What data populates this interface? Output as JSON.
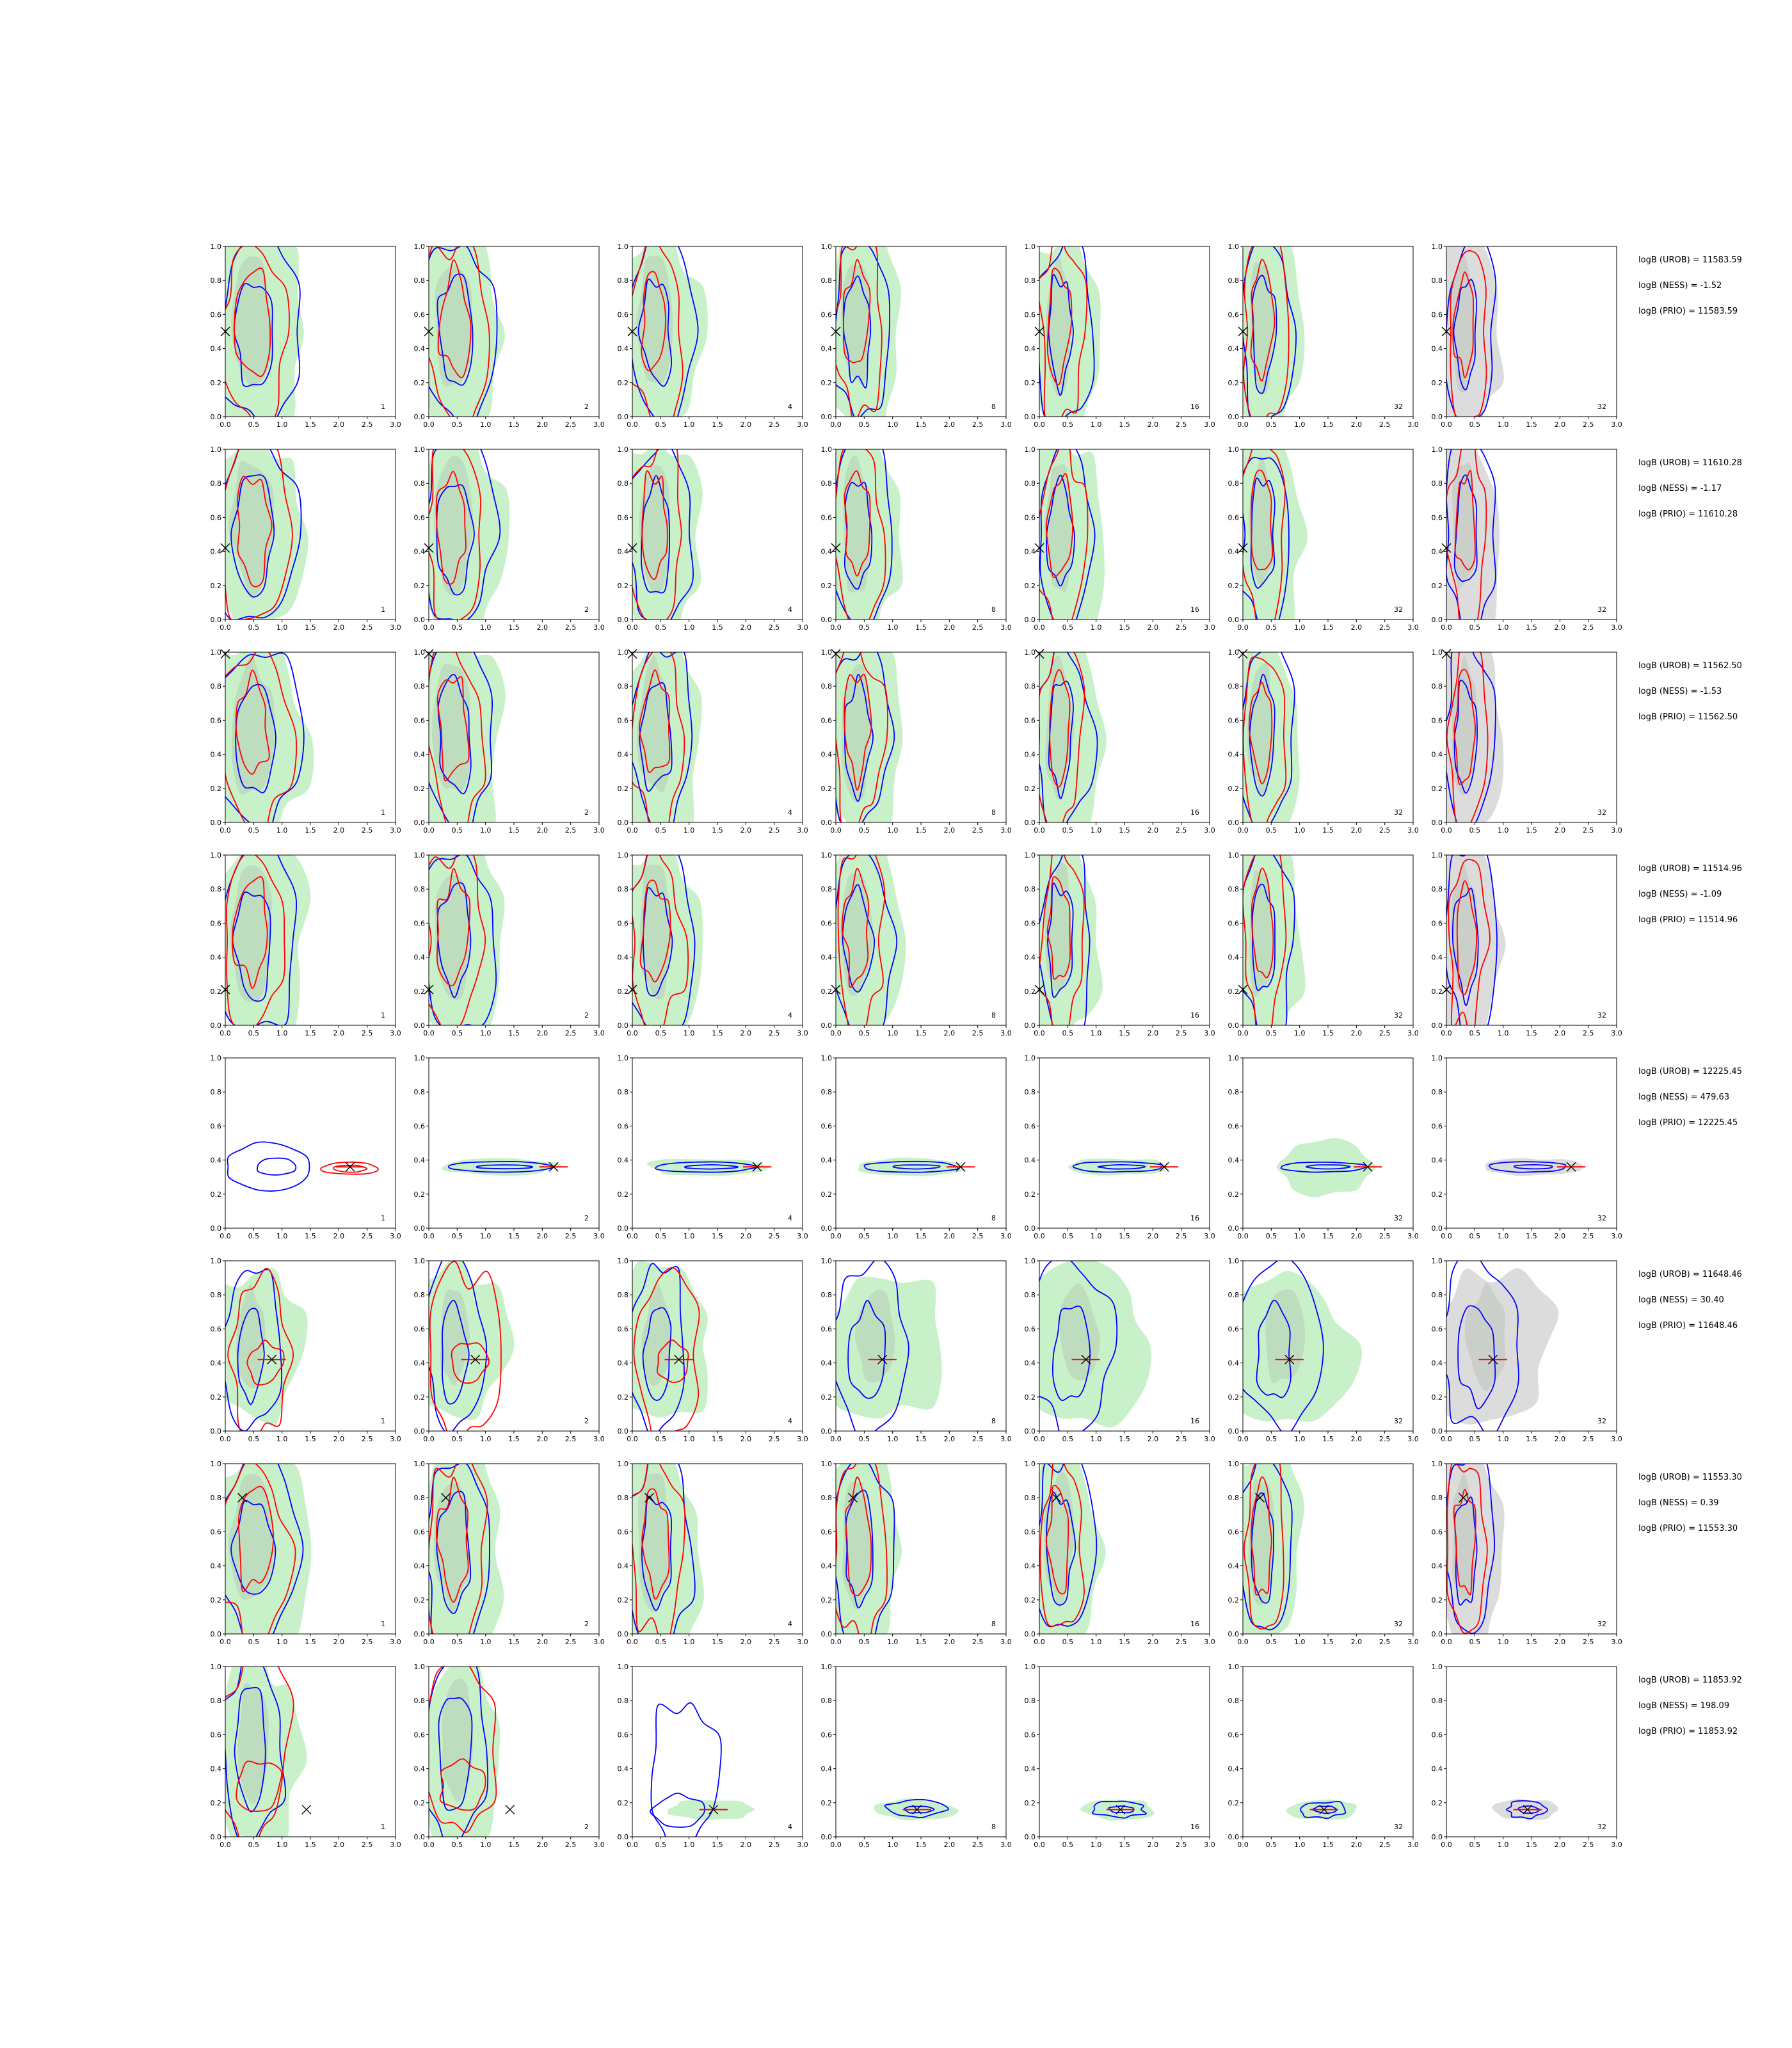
{
  "chart_data": {
    "type": "contour-grid",
    "rows": 8,
    "columns": 7,
    "xlim": [
      0,
      3
    ],
    "ylim": [
      0,
      1
    ],
    "xticks": [
      "0.0",
      "0.5",
      "1.0",
      "1.5",
      "2.0",
      "2.5",
      "3.0"
    ],
    "yticks": [
      "0.0",
      "0.2",
      "0.4",
      "0.6",
      "0.8",
      "1.0"
    ],
    "panel_labels": [
      "1",
      "2",
      "4",
      "8",
      "16",
      "32",
      "32"
    ],
    "colors": {
      "blue_contour": "#0000ff",
      "red_contour": "#ff0000",
      "green_fill": "#b7ecb7",
      "grey_fill": "#d0d0d0",
      "marker": "#000000"
    },
    "row_data": [
      {
        "marker": [
          0.0,
          0.5
        ],
        "shape": "tall",
        "logB": [
          "logB (UROB) = 11583.59",
          "logB (NESS) = -1.52",
          "logB (PRIO) = 11583.59"
        ]
      },
      {
        "marker": [
          0.0,
          0.42
        ],
        "shape": "tall",
        "logB": [
          "logB (UROB) = 11610.28",
          "logB (NESS) = -1.17",
          "logB (PRIO) = 11610.28"
        ]
      },
      {
        "marker": [
          0.0,
          0.99
        ],
        "shape": "tall",
        "logB": [
          "logB (UROB) = 11562.50",
          "logB (NESS) = -1.53",
          "logB (PRIO) = 11562.50"
        ]
      },
      {
        "marker": [
          0.0,
          0.21
        ],
        "shape": "tall",
        "logB": [
          "logB (UROB) = 11514.96",
          "logB (NESS) = -1.09",
          "logB (PRIO) = 11514.96"
        ]
      },
      {
        "marker": [
          2.2,
          0.36
        ],
        "shape": "flat",
        "logB": [
          "logB (UROB) = 12225.45",
          "logB (NESS) = 479.63",
          "logB (PRIO) = 12225.45"
        ]
      },
      {
        "marker": [
          0.82,
          0.42
        ],
        "shape": "blob",
        "logB": [
          "logB (UROB) = 11648.46",
          "logB (NESS) = 30.40",
          "logB (PRIO) = 11648.46"
        ]
      },
      {
        "marker": [
          0.3,
          0.8
        ],
        "shape": "tall",
        "logB": [
          "logB (UROB) = 11553.30",
          "logB (NESS) = 0.39",
          "logB (PRIO) = 11553.30"
        ]
      },
      {
        "marker": [
          1.43,
          0.16
        ],
        "shape": "mixed",
        "logB": [
          "logB (UROB) = 11853.92",
          "logB (NESS) = 198.09",
          "logB (PRIO) = 11853.92"
        ]
      }
    ]
  }
}
